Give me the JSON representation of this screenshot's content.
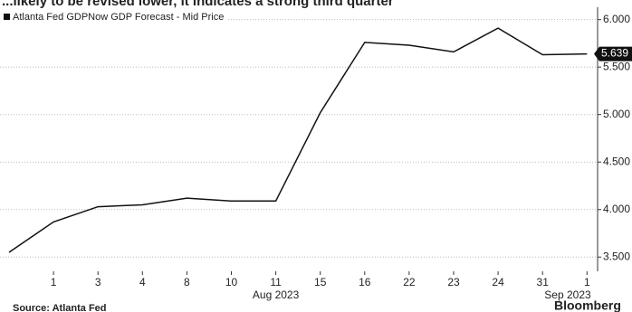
{
  "chart_data": {
    "type": "line",
    "title": "...likely to be revised lower, it indicates a strong third quarter",
    "categories": [
      null,
      "1",
      "3",
      "4",
      "8",
      "10",
      "11",
      "15",
      "16",
      "22",
      "23",
      "24",
      "31",
      "1"
    ],
    "x_group_labels": [
      "Aug 2023",
      "Sep 2023"
    ],
    "series": [
      {
        "name": "Atlanta Fed GDPNow GDP Forecast - Mid Price",
        "color": "#111111",
        "values": [
          3.55,
          3.87,
          4.03,
          4.05,
          4.12,
          4.09,
          4.09,
          5.02,
          5.76,
          5.73,
          5.66,
          5.91,
          5.63,
          5.639
        ]
      }
    ],
    "ylim": [
      3.35,
      6.13
    ],
    "yticks": [
      {
        "value": 3.5,
        "label": "3.500"
      },
      {
        "value": 4,
        "label": "4.000"
      },
      {
        "value": 4.5,
        "label": "4.500"
      },
      {
        "value": 5,
        "label": "5.000"
      },
      {
        "value": 5.5,
        "label": "5.500"
      },
      {
        "value": 6,
        "label": "6.000"
      }
    ],
    "grid": true,
    "legend": "top-left",
    "source": "Source: Atlanta Fed",
    "brand": "Bloomberg"
  }
}
